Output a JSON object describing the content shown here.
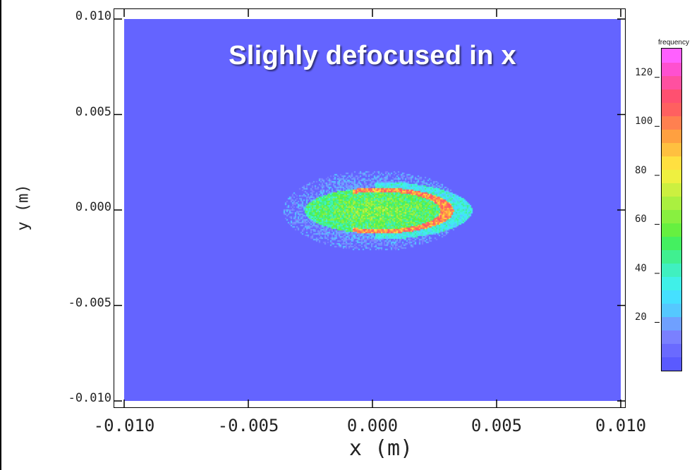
{
  "colors": {
    "background": "#6464ff",
    "frame": "#000000",
    "title_text": "#ffffff"
  },
  "chart_data": {
    "type": "heatmap",
    "title": "Slighly defocused in x",
    "xlabel": "x  (m)",
    "ylabel": "y (m)",
    "xlim": [
      -0.01,
      0.01
    ],
    "ylim": [
      -0.01,
      0.01
    ],
    "x_ticks": [
      {
        "value": -0.01,
        "label": "-0.010"
      },
      {
        "value": -0.005,
        "label": "-0.005"
      },
      {
        "value": 0.0,
        "label": "0.000"
      },
      {
        "value": 0.005,
        "label": "0.005"
      },
      {
        "value": 0.01,
        "label": "0.010"
      }
    ],
    "y_ticks": [
      {
        "value": 0.01,
        "label": "0.010"
      },
      {
        "value": 0.005,
        "label": "0.005"
      },
      {
        "value": 0.0,
        "label": "0.000"
      },
      {
        "value": -0.005,
        "label": "-0.005"
      },
      {
        "value": -0.01,
        "label": "-0.010"
      }
    ],
    "colorbar": {
      "title": "frequency",
      "range": [
        0,
        132
      ],
      "ticks": [
        {
          "value": 120,
          "label": "120"
        },
        {
          "value": 100,
          "label": "100"
        },
        {
          "value": 80,
          "label": "80"
        },
        {
          "value": 60,
          "label": "60"
        },
        {
          "value": 40,
          "label": "40"
        },
        {
          "value": 20,
          "label": "20"
        }
      ],
      "colors": [
        "#5a5aff",
        "#6a6aff",
        "#7a80ff",
        "#6fa0ff",
        "#55c8ff",
        "#45e0ff",
        "#40f0e8",
        "#40f0c0",
        "#40f090",
        "#44f060",
        "#66f040",
        "#88f040",
        "#aaf040",
        "#ccf040",
        "#eef040",
        "#ffe040",
        "#ffc040",
        "#ffa040",
        "#ff8050",
        "#ff6060",
        "#ff5070",
        "#ff50a0",
        "#ff50d0",
        "#ff60ff"
      ]
    },
    "beam": {
      "description_levels": "elliptical beam spot centred near x=0.0001 m, y=0.000 m",
      "center_x": 0.0001,
      "center_y": 0.0,
      "half_width_x_core": 0.003,
      "half_width_y_core": 0.0012,
      "halo_x_min": -0.0036,
      "tip_x_max": 0.0037,
      "halo_y_extent": 0.0021,
      "core_level": 62,
      "ring_level": 100,
      "halo_level": 18
    }
  }
}
